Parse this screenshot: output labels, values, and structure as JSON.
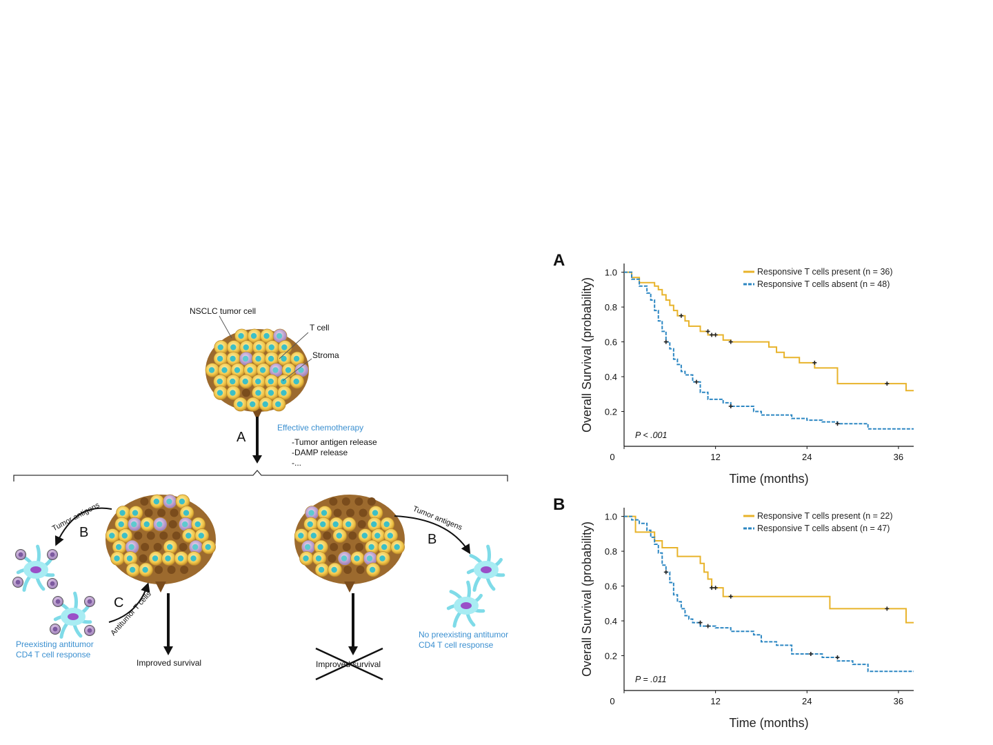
{
  "diagram": {
    "top_labels": {
      "tumor_cell": "NSCLC tumor cell",
      "t_cell": "T cell",
      "stroma": "Stroma"
    },
    "arrow_a_label": "A",
    "chemo_title": "Effective chemotherapy",
    "chemo_items": [
      "-Tumor antigen release",
      "-DAMP release",
      "-..."
    ],
    "left_branch": {
      "tumor_antigens": "Tumor antigens",
      "b_label": "B",
      "c_label": "C",
      "antitumor_t_cells": "Antitumor T cells",
      "response_line1": "Preexisting antitumor",
      "response_line2": "CD4 T cell response",
      "outcome": "Improved survival"
    },
    "right_branch": {
      "tumor_antigens": "Tumor antigens",
      "b_label": "B",
      "response_line1": "No preexisting antitumor",
      "response_line2": "CD4 T cell response",
      "outcome": "Improved survival"
    }
  },
  "chart_data": [
    {
      "type": "line",
      "panel": "A",
      "ylabel": "Overall Survival (probability)",
      "xlabel": "Time (months)",
      "xlim": [
        0,
        38
      ],
      "ylim": [
        0,
        1.05
      ],
      "xticks": [
        "0",
        "12",
        "24",
        "36"
      ],
      "yticks": [
        "0.2",
        "0.4",
        "0.6",
        "0.8",
        "1.0"
      ],
      "annotation": "P < .001",
      "legend_position": "top-right",
      "series": [
        {
          "name": "Responsive T cells present (n = 36)",
          "color": "#e8b32a",
          "dashed": false,
          "x": [
            0,
            1,
            2,
            3,
            4,
            4.5,
            5,
            5.5,
            6,
            6.5,
            7,
            7.5,
            8,
            8.5,
            10,
            11,
            12,
            13,
            14,
            16,
            18,
            19,
            20,
            21,
            23,
            25,
            27,
            28,
            30,
            34,
            36,
            37,
            38
          ],
          "y": [
            1.0,
            0.97,
            0.94,
            0.94,
            0.92,
            0.9,
            0.87,
            0.84,
            0.81,
            0.78,
            0.75,
            0.75,
            0.72,
            0.69,
            0.66,
            0.64,
            0.64,
            0.61,
            0.6,
            0.6,
            0.6,
            0.57,
            0.54,
            0.51,
            0.48,
            0.45,
            0.45,
            0.36,
            0.36,
            0.36,
            0.36,
            0.32,
            0.32
          ],
          "censor_x": [
            7.5,
            11,
            11.5,
            12,
            14,
            25,
            34.5
          ],
          "censor_y": [
            0.75,
            0.66,
            0.64,
            0.64,
            0.6,
            0.48,
            0.36
          ]
        },
        {
          "name": "Responsive T cells absent (n = 48)",
          "color": "#2b86c2",
          "dashed": true,
          "x": [
            0,
            1,
            2,
            3,
            3.5,
            4,
            4.5,
            5,
            5.5,
            6,
            6.5,
            7,
            7.5,
            8,
            9,
            10,
            11,
            12,
            13,
            14,
            16,
            17,
            18,
            20,
            22,
            24,
            26,
            28,
            30,
            32,
            34,
            36,
            38
          ],
          "y": [
            1.0,
            0.96,
            0.92,
            0.88,
            0.84,
            0.78,
            0.72,
            0.66,
            0.6,
            0.56,
            0.5,
            0.47,
            0.43,
            0.41,
            0.37,
            0.31,
            0.27,
            0.27,
            0.25,
            0.23,
            0.23,
            0.2,
            0.18,
            0.18,
            0.16,
            0.15,
            0.14,
            0.13,
            0.13,
            0.1,
            0.1,
            0.1,
            0.1
          ],
          "censor_x": [
            5.5,
            9.5,
            14,
            28
          ],
          "censor_y": [
            0.6,
            0.37,
            0.23,
            0.13
          ]
        }
      ]
    },
    {
      "type": "line",
      "panel": "B",
      "ylabel": "Overall Survival (probability)",
      "xlabel": "Time (months)",
      "xlim": [
        0,
        38
      ],
      "ylim": [
        0,
        1.05
      ],
      "xticks": [
        "0",
        "12",
        "24",
        "36"
      ],
      "yticks": [
        "0.2",
        "0.4",
        "0.6",
        "0.8",
        "1.0"
      ],
      "annotation": "P = .011",
      "legend_position": "top-right",
      "series": [
        {
          "name": "Responsive T cells present (n = 22)",
          "color": "#e8b32a",
          "dashed": false,
          "x": [
            0,
            1,
            1.5,
            2,
            3,
            4,
            5,
            6,
            7,
            8,
            9,
            10,
            10.5,
            11,
            11.5,
            12,
            13,
            14,
            16,
            20,
            24,
            26,
            27,
            30,
            33,
            36,
            37,
            38
          ],
          "y": [
            1.0,
            1.0,
            0.91,
            0.91,
            0.91,
            0.86,
            0.82,
            0.82,
            0.77,
            0.77,
            0.77,
            0.73,
            0.68,
            0.64,
            0.59,
            0.59,
            0.54,
            0.54,
            0.54,
            0.54,
            0.54,
            0.54,
            0.47,
            0.47,
            0.47,
            0.47,
            0.39,
            0.39
          ],
          "censor_x": [
            11.5,
            12,
            14,
            34.5
          ],
          "censor_y": [
            0.59,
            0.59,
            0.54,
            0.47
          ]
        },
        {
          "name": "Responsive T cells absent (n = 47)",
          "color": "#2b86c2",
          "dashed": true,
          "x": [
            0,
            1,
            2,
            3,
            3.5,
            4,
            4.5,
            5,
            5.5,
            6,
            6.5,
            7,
            7.5,
            8,
            8.5,
            9,
            10,
            11,
            12,
            14,
            16,
            17,
            18,
            20,
            22,
            24,
            26,
            28,
            30,
            32,
            34,
            36,
            38
          ],
          "y": [
            1.0,
            0.98,
            0.96,
            0.92,
            0.88,
            0.84,
            0.79,
            0.72,
            0.68,
            0.62,
            0.55,
            0.51,
            0.47,
            0.43,
            0.41,
            0.39,
            0.37,
            0.37,
            0.36,
            0.34,
            0.34,
            0.32,
            0.28,
            0.26,
            0.21,
            0.21,
            0.19,
            0.17,
            0.15,
            0.11,
            0.11,
            0.11,
            0.11
          ],
          "censor_x": [
            5.5,
            10,
            11,
            24.5,
            28
          ],
          "censor_y": [
            0.68,
            0.39,
            0.37,
            0.21,
            0.19
          ]
        }
      ]
    }
  ]
}
